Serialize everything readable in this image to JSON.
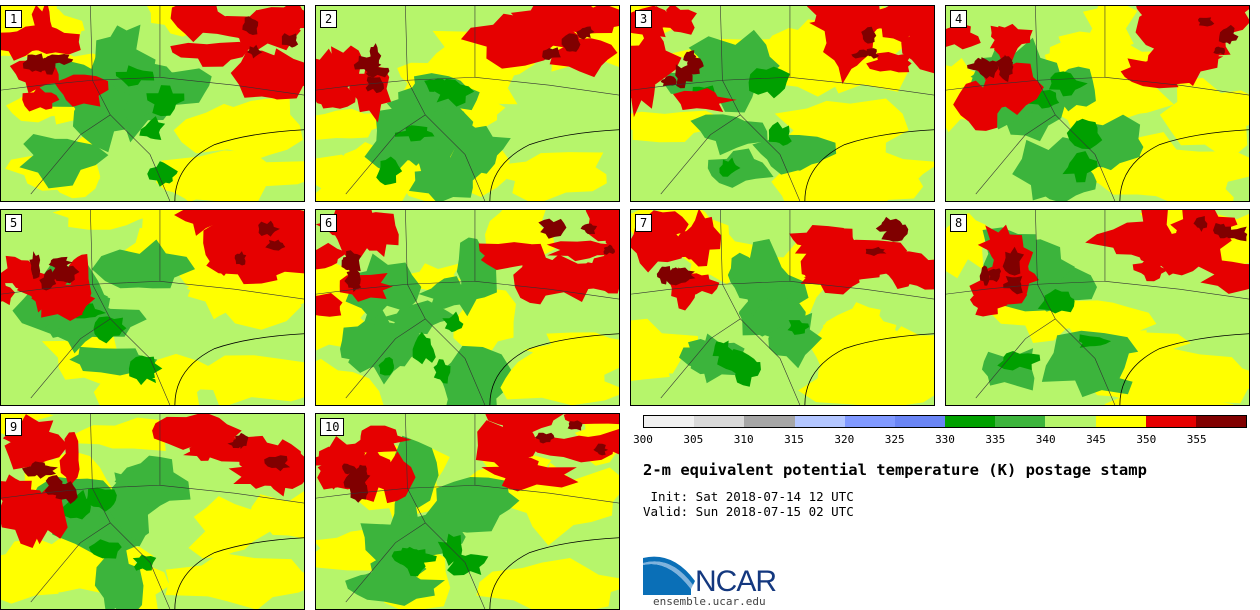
{
  "panels": [
    {
      "label": "1",
      "seed": 11
    },
    {
      "label": "2",
      "seed": 23
    },
    {
      "label": "3",
      "seed": 37
    },
    {
      "label": "4",
      "seed": 41
    },
    {
      "label": "5",
      "seed": 53
    },
    {
      "label": "6",
      "seed": 67
    },
    {
      "label": "7",
      "seed": 71
    },
    {
      "label": "8",
      "seed": 89
    },
    {
      "label": "9",
      "seed": 97
    },
    {
      "label": "10",
      "seed": 103
    }
  ],
  "colorbar": {
    "ticks": [
      "300",
      "305",
      "310",
      "315",
      "320",
      "325",
      "330",
      "335",
      "340",
      "345",
      "350",
      "355"
    ],
    "colors": [
      "#f0f0f0",
      "#d9d9d9",
      "#a6a6a6",
      "#b3c6ff",
      "#8099ff",
      "#6a85f5",
      "#00a000",
      "#3cb43c",
      "#b6f56b",
      "#ffff00",
      "#e60000",
      "#800000"
    ]
  },
  "title": "2-m equivalent potential temperature (K) postage stamp",
  "init": " Init: Sat 2018-07-14 12 UTC",
  "valid": "Valid: Sun 2018-07-15 02 UTC",
  "logo_text": "NCAR",
  "site": "ensemble.ucar.edu"
}
